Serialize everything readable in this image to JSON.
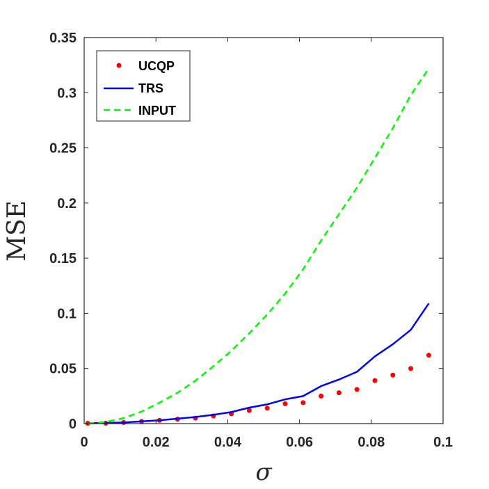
{
  "chart_data": {
    "type": "line",
    "xlabel": "σ",
    "ylabel": "MSE",
    "xlim": [
      0,
      0.1
    ],
    "ylim": [
      0,
      0.35
    ],
    "x_ticks": [
      "0",
      "0.02",
      "0.04",
      "0.06",
      "0.08",
      "0.1"
    ],
    "y_ticks": [
      "0",
      "0.05",
      "0.1",
      "0.15",
      "0.2",
      "0.25",
      "0.3",
      "0.35"
    ],
    "x_tick_values": [
      0,
      0.02,
      0.04,
      0.06,
      0.08,
      0.1
    ],
    "y_tick_values": [
      0,
      0.05,
      0.1,
      0.15,
      0.2,
      0.25,
      0.3,
      0.35
    ],
    "grid": false,
    "box": true,
    "legend_position": "top-left",
    "x": [
      0.001,
      0.006,
      0.011,
      0.016,
      0.021,
      0.026,
      0.031,
      0.036,
      0.041,
      0.046,
      0.051,
      0.056,
      0.061,
      0.066,
      0.071,
      0.076,
      0.081,
      0.086,
      0.091,
      0.096
    ],
    "series": [
      {
        "name": "UCQP",
        "style": "dots",
        "color": "#ff0000",
        "values": [
          0.0003,
          0.0004,
          0.001,
          0.002,
          0.003,
          0.004,
          0.005,
          0.007,
          0.009,
          0.012,
          0.014,
          0.018,
          0.019,
          0.025,
          0.028,
          0.031,
          0.039,
          0.044,
          0.05,
          0.062
        ]
      },
      {
        "name": "TRS",
        "style": "solid",
        "color": "#0000ff",
        "values": [
          0.0003,
          0.0006,
          0.001,
          0.002,
          0.003,
          0.0045,
          0.006,
          0.008,
          0.0105,
          0.0145,
          0.0175,
          0.022,
          0.025,
          0.034,
          0.04,
          0.047,
          0.061,
          0.072,
          0.085,
          0.109
        ]
      },
      {
        "name": "INPUT",
        "style": "dashed",
        "color": "#00ff00",
        "values": [
          0.0,
          0.0015,
          0.005,
          0.011,
          0.019,
          0.028,
          0.039,
          0.052,
          0.066,
          0.082,
          0.099,
          0.118,
          0.14,
          0.166,
          0.19,
          0.214,
          0.241,
          0.268,
          0.298,
          0.322
        ]
      }
    ]
  }
}
